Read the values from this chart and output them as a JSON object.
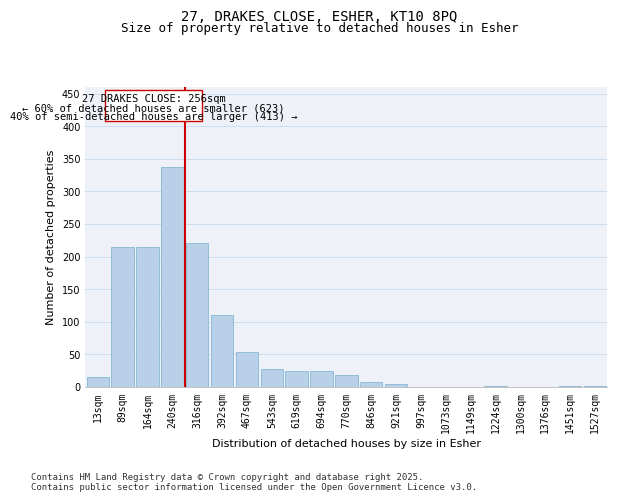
{
  "title_line1": "27, DRAKES CLOSE, ESHER, KT10 8PQ",
  "title_line2": "Size of property relative to detached houses in Esher",
  "xlabel": "Distribution of detached houses by size in Esher",
  "ylabel": "Number of detached properties",
  "categories": [
    "13sqm",
    "89sqm",
    "164sqm",
    "240sqm",
    "316sqm",
    "392sqm",
    "467sqm",
    "543sqm",
    "619sqm",
    "694sqm",
    "770sqm",
    "846sqm",
    "921sqm",
    "997sqm",
    "1073sqm",
    "1149sqm",
    "1224sqm",
    "1300sqm",
    "1376sqm",
    "1451sqm",
    "1527sqm"
  ],
  "values": [
    15,
    215,
    215,
    338,
    221,
    111,
    54,
    27,
    25,
    25,
    18,
    8,
    5,
    0,
    0,
    0,
    2,
    0,
    0,
    2,
    2
  ],
  "bar_color": "#b8d0e8",
  "bar_edge_color": "#7aaed0",
  "bar_edge_width": 0.5,
  "vline_x": 3.5,
  "vline_color": "#cc0000",
  "annotation_text_line1": "27 DRAKES CLOSE: 256sqm",
  "annotation_text_line2": "← 60% of detached houses are smaller (623)",
  "annotation_text_line3": "40% of semi-detached houses are larger (413) →",
  "box_color": "#cc0000",
  "ylim": [
    0,
    460
  ],
  "yticks": [
    0,
    50,
    100,
    150,
    200,
    250,
    300,
    350,
    400,
    450
  ],
  "grid_color": "#ccddee",
  "bg_color": "#eef2f8",
  "footer_text": "Contains HM Land Registry data © Crown copyright and database right 2025.\nContains public sector information licensed under the Open Government Licence v3.0.",
  "title_fontsize": 10,
  "subtitle_fontsize": 9,
  "axis_label_fontsize": 8,
  "tick_fontsize": 7,
  "annotation_fontsize": 7.5,
  "footer_fontsize": 6.5
}
